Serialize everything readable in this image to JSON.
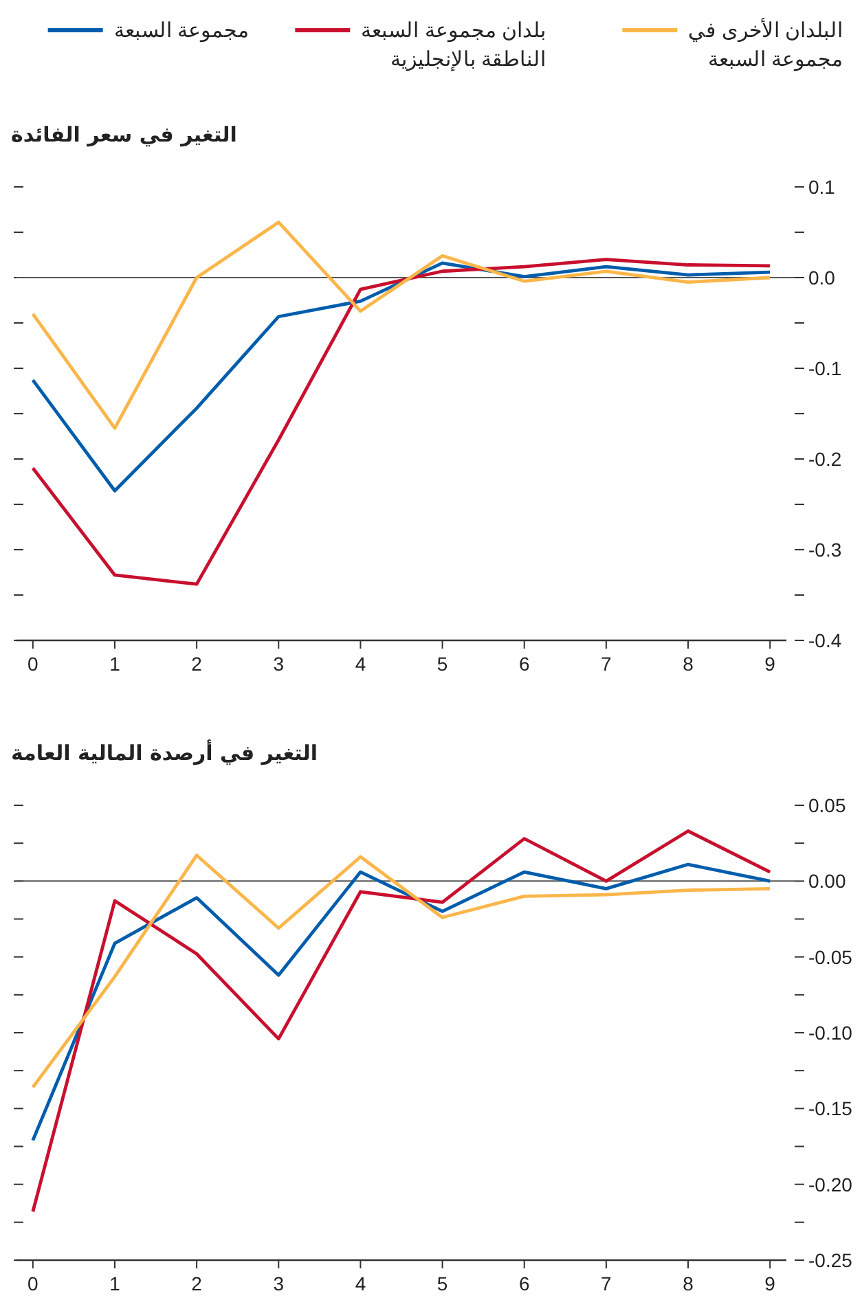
{
  "chart_data": [
    {
      "type": "line",
      "title": "التغير في سعر الفائدة",
      "x": [
        0,
        1,
        2,
        3,
        4,
        5,
        6,
        7,
        8,
        9
      ],
      "xlim": [
        -0.2,
        9.2
      ],
      "xticks": [
        0,
        1,
        2,
        3,
        4,
        5,
        6,
        7,
        8,
        9
      ],
      "ylim": [
        -0.4,
        0.1
      ],
      "yticks": [
        {
          "value": -0.4,
          "label": "-0.4"
        },
        {
          "value": -0.35,
          "label": null
        },
        {
          "value": -0.3,
          "label": "-0.3"
        },
        {
          "value": -0.25,
          "label": null
        },
        {
          "value": -0.2,
          "label": "-0.2"
        },
        {
          "value": -0.15,
          "label": null
        },
        {
          "value": -0.1,
          "label": "-0.1"
        },
        {
          "value": -0.05,
          "label": null
        },
        {
          "value": 0,
          "label": "0.0"
        },
        {
          "value": 0.05,
          "label": null
        },
        {
          "value": 0.1,
          "label": "0.1"
        }
      ],
      "ref_lines": [
        {
          "axis": "y",
          "value": 0,
          "color": "#555555"
        }
      ],
      "legend": "top",
      "series": [
        {
          "name": "مجموعة السبعة",
          "color": "#005dab",
          "values": [
            -0.113,
            -0.235,
            -0.144,
            -0.043,
            -0.026,
            0.016,
            0.001,
            0.012,
            0.003,
            0.006
          ]
        },
        {
          "name": "بلدان مجموعة السبعة الناطقة بالإنجليزية",
          "color": "#c8102e",
          "values": [
            -0.21,
            -0.328,
            -0.338,
            -0.179,
            -0.013,
            0.007,
            0.012,
            0.02,
            0.014,
            0.013
          ]
        },
        {
          "name": "البلدان الأخرى في مجموعة السبعة",
          "color": "#fbb64a",
          "values": [
            -0.04,
            -0.166,
            0.0,
            0.061,
            -0.037,
            0.024,
            -0.004,
            0.007,
            -0.005,
            0.0
          ]
        }
      ]
    },
    {
      "type": "line",
      "title": "التغير في أرصدة المالية العامة",
      "x": [
        0,
        1,
        2,
        3,
        4,
        5,
        6,
        7,
        8,
        9
      ],
      "xlim": [
        -0.2,
        9.2
      ],
      "xticks": [
        0,
        1,
        2,
        3,
        4,
        5,
        6,
        7,
        8,
        9
      ],
      "ylim": [
        -0.25,
        0.05
      ],
      "yticks": [
        {
          "value": -0.25,
          "label": "-0.25"
        },
        {
          "value": -0.225,
          "label": null
        },
        {
          "value": -0.2,
          "label": "-0.20"
        },
        {
          "value": -0.175,
          "label": null
        },
        {
          "value": -0.15,
          "label": "-0.15"
        },
        {
          "value": -0.125,
          "label": null
        },
        {
          "value": -0.1,
          "label": "-0.10"
        },
        {
          "value": -0.075,
          "label": null
        },
        {
          "value": -0.05,
          "label": "-0.05"
        },
        {
          "value": -0.025,
          "label": null
        },
        {
          "value": 0,
          "label": "0.00"
        },
        {
          "value": 0.025,
          "label": null
        },
        {
          "value": 0.05,
          "label": "0.05"
        }
      ],
      "ref_lines": [
        {
          "axis": "y",
          "value": 0,
          "color": "#555555"
        }
      ],
      "series": [
        {
          "color": "#005dab",
          "values": [
            -0.171,
            -0.041,
            -0.011,
            -0.062,
            0.006,
            -0.02,
            0.006,
            -0.005,
            0.011,
            0.0
          ]
        },
        {
          "color": "#c8102e",
          "values": [
            -0.218,
            -0.013,
            -0.048,
            -0.104,
            -0.007,
            -0.014,
            0.028,
            0.0,
            0.033,
            0.006
          ]
        },
        {
          "color": "#fbb64a",
          "values": [
            -0.136,
            -0.063,
            0.017,
            -0.031,
            0.016,
            -0.024,
            -0.01,
            -0.009,
            -0.006,
            -0.005
          ]
        }
      ]
    }
  ]
}
